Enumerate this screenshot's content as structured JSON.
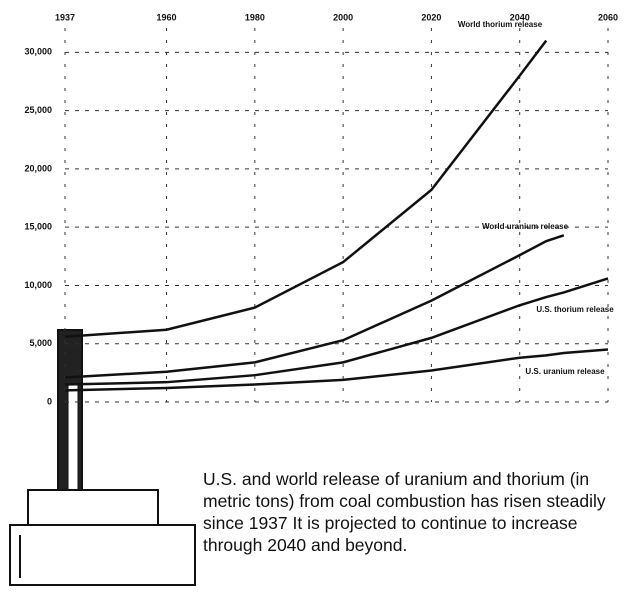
{
  "chart_data": {
    "type": "line",
    "caption": "U.S. and world release of uranium and thorium (in metric tons) from coal combustion has risen steadily since 1937 It is projected to continue to increase through 2040 and beyond.",
    "x": [
      1937,
      1960,
      1980,
      2000,
      2020,
      2040,
      2046,
      2050,
      2060
    ],
    "series": [
      {
        "name": "World thorium release",
        "color": "#111111",
        "values": [
          5600,
          6200,
          8100,
          12000,
          18200,
          28000,
          31000,
          null,
          null
        ]
      },
      {
        "name": "World uranium release",
        "color": "#111111",
        "values": [
          2100,
          2600,
          3400,
          5300,
          8700,
          12600,
          13800,
          14300,
          null
        ]
      },
      {
        "name": "U.S. thorium release",
        "color": "#111111",
        "values": [
          1500,
          1700,
          2300,
          3400,
          5500,
          8300,
          9000,
          9400,
          10600
        ]
      },
      {
        "name": "U.S. uranium release",
        "color": "#111111",
        "values": [
          1000,
          1200,
          1500,
          1900,
          2700,
          3800,
          4000,
          4200,
          4500
        ]
      }
    ],
    "xlim": [
      1937,
      2060
    ],
    "xticks": [
      1937,
      1960,
      1980,
      2000,
      2020,
      2040,
      2060
    ],
    "ylim": [
      0,
      32000
    ],
    "yticks": [
      0,
      {
        "value": 5000,
        "label": "5,000"
      },
      {
        "value": 10000,
        "label": "10,000"
      },
      {
        "value": 15000,
        "label": "15,000"
      },
      {
        "value": 20000,
        "label": "20,000"
      },
      {
        "value": 25000,
        "label": "25,000"
      },
      {
        "value": 30000,
        "label": "30,000"
      }
    ],
    "grid": true
  }
}
